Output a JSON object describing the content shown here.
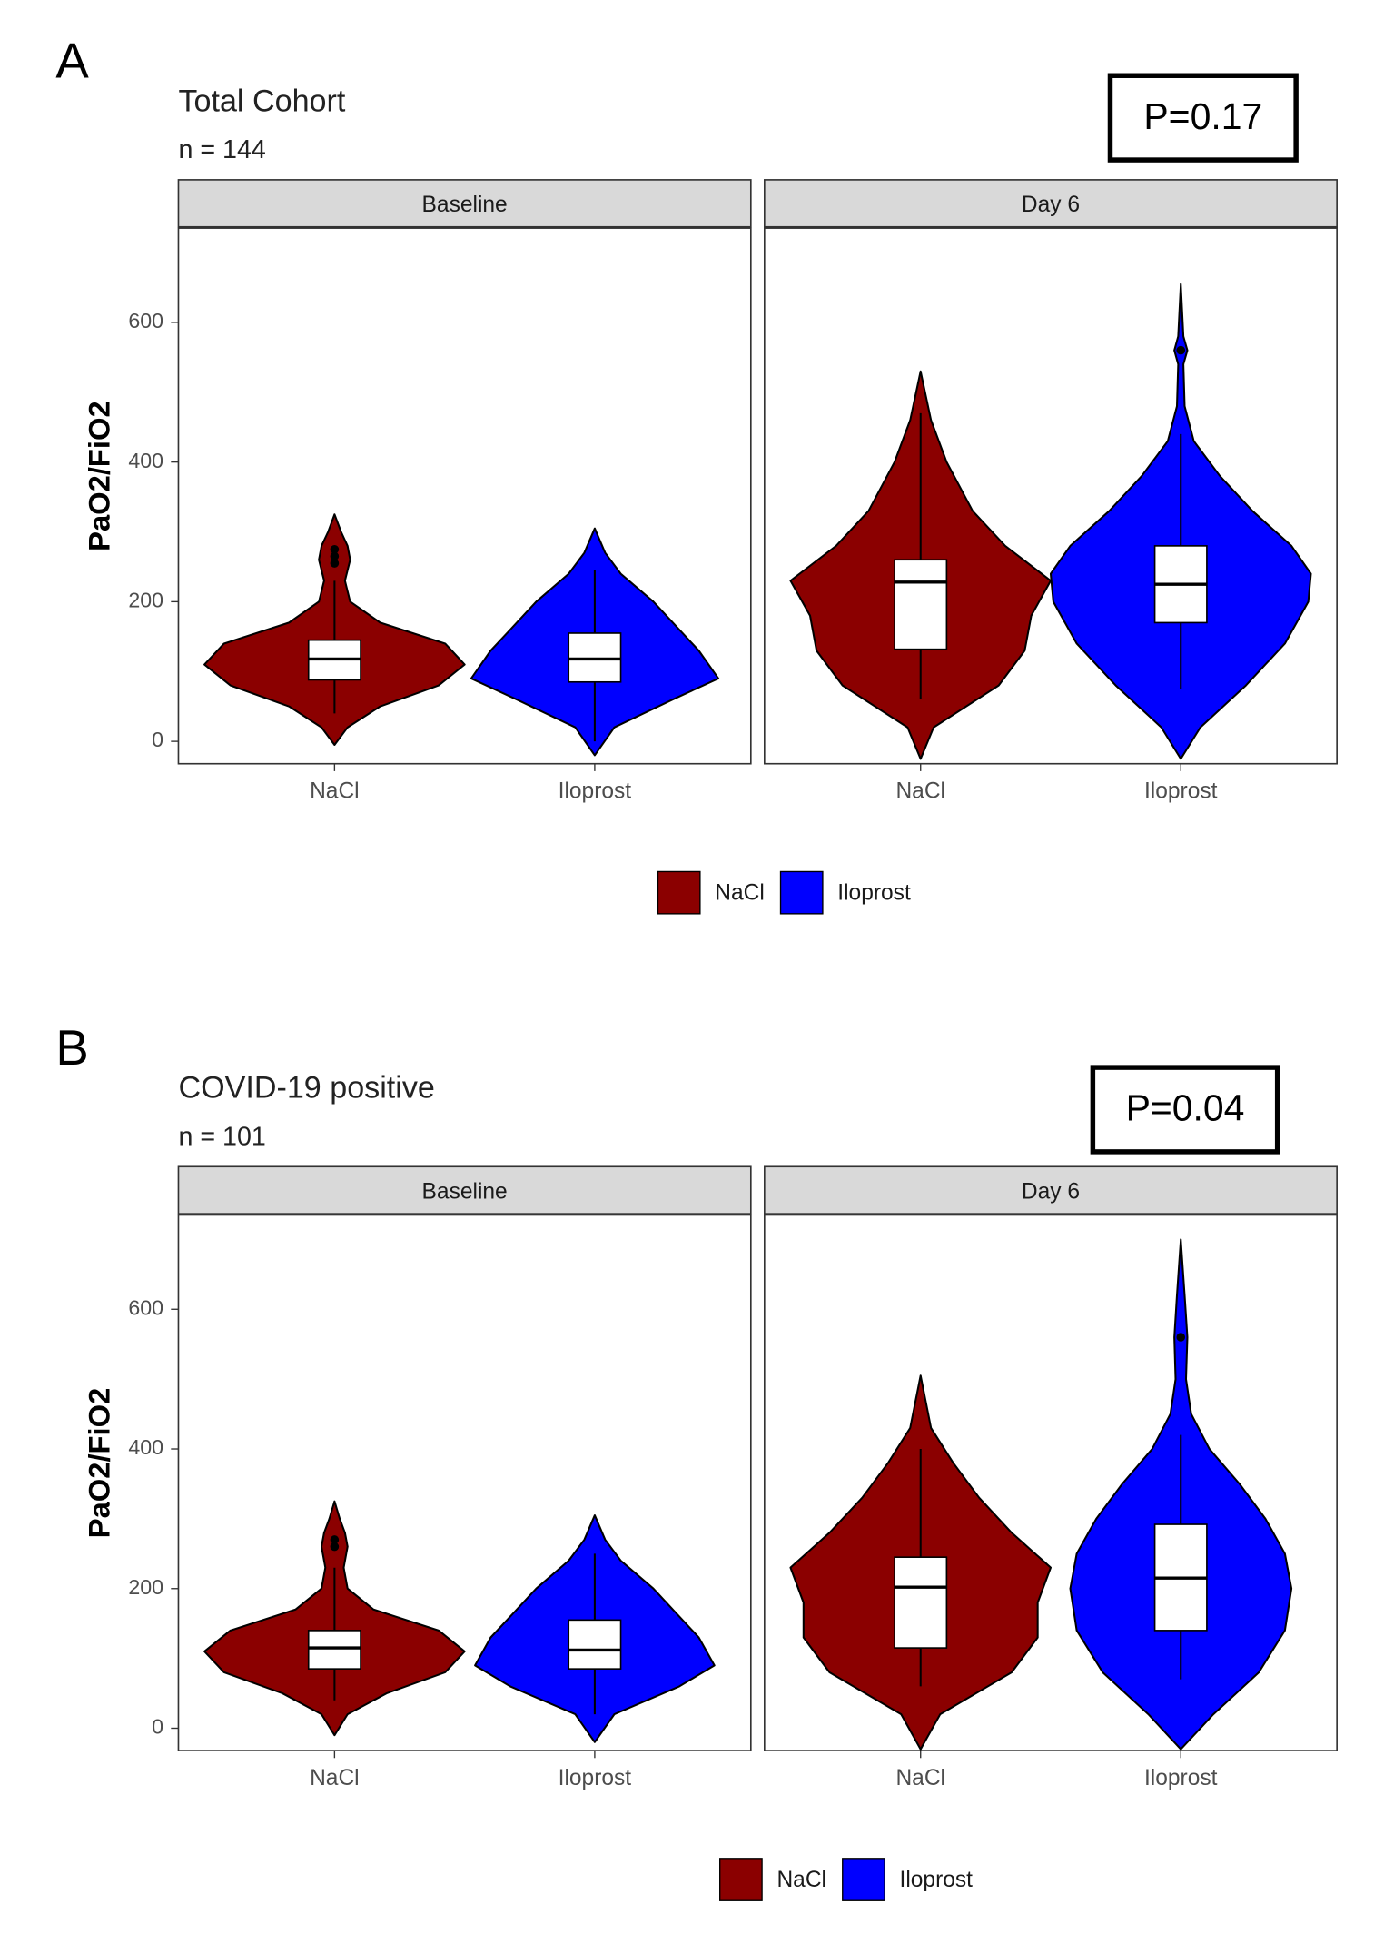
{
  "chart_data": [
    {
      "type": "violin",
      "panel_label": "A",
      "title": "Total Cohort",
      "subtitle": "n = 144",
      "annotation": "P=0.17",
      "ylabel": "PaO2/FiO2",
      "facets": [
        "Baseline",
        "Day 6"
      ],
      "categories": [
        "NaCl",
        "Iloprost"
      ],
      "ylim": [
        -32,
        735
      ],
      "yticks": [
        0,
        200,
        400,
        600
      ],
      "series": [
        {
          "name": "NaCl",
          "color": "#8b0000",
          "violins": [
            {
              "y": [
                -5,
                20,
                50,
                80,
                110,
                140,
                170,
                200,
                230,
                260,
                280,
                300,
                325
              ],
              "width": [
                0,
                0.1,
                0.35,
                0.8,
                1.0,
                0.85,
                0.35,
                0.12,
                0.08,
                0.12,
                0.1,
                0.05,
                0
              ],
              "box": {
                "low": 40,
                "q1": 88,
                "median": 118,
                "q3": 145,
                "high": 230
              },
              "outliers": [
                255,
                265,
                275
              ]
            },
            {
              "y": [
                -25,
                20,
                80,
                130,
                180,
                230,
                280,
                330,
                400,
                460,
                530
              ],
              "width": [
                0,
                0.1,
                0.6,
                0.8,
                0.85,
                1.0,
                0.65,
                0.4,
                0.2,
                0.08,
                0
              ],
              "box": {
                "low": 60,
                "q1": 132,
                "median": 228,
                "q3": 260,
                "high": 470
              },
              "outliers": []
            }
          ]
        },
        {
          "name": "Iloprost",
          "color": "#0000ff",
          "violins": [
            {
              "y": [
                -20,
                20,
                60,
                90,
                130,
                160,
                200,
                240,
                270,
                305
              ],
              "width": [
                0,
                0.15,
                0.6,
                0.95,
                0.8,
                0.65,
                0.45,
                0.2,
                0.08,
                0
              ],
              "box": {
                "low": 0,
                "q1": 85,
                "median": 118,
                "q3": 155,
                "high": 245
              },
              "outliers": []
            },
            {
              "y": [
                -25,
                20,
                80,
                140,
                200,
                240,
                280,
                330,
                380,
                430,
                480,
                540,
                560,
                580,
                655
              ],
              "width": [
                0,
                0.15,
                0.5,
                0.8,
                0.98,
                1.0,
                0.85,
                0.55,
                0.3,
                0.1,
                0.03,
                0.02,
                0.05,
                0.02,
                0
              ],
              "box": {
                "low": 75,
                "q1": 170,
                "median": 225,
                "q3": 280,
                "high": 440
              },
              "outliers": [
                560
              ]
            }
          ]
        }
      ]
    },
    {
      "type": "violin",
      "panel_label": "B",
      "title": "COVID-19 positive",
      "subtitle": "n = 101",
      "annotation": "P=0.04",
      "ylabel": "PaO2/FiO2",
      "facets": [
        "Baseline",
        "Day 6"
      ],
      "categories": [
        "NaCl",
        "Iloprost"
      ],
      "ylim": [
        -32,
        735
      ],
      "yticks": [
        0,
        200,
        400,
        600
      ],
      "series": [
        {
          "name": "NaCl",
          "color": "#8b0000",
          "violins": [
            {
              "y": [
                -10,
                20,
                50,
                80,
                110,
                140,
                170,
                200,
                230,
                260,
                280,
                300,
                325
              ],
              "width": [
                0,
                0.1,
                0.4,
                0.85,
                1.0,
                0.8,
                0.3,
                0.1,
                0.07,
                0.1,
                0.08,
                0.04,
                0
              ],
              "box": {
                "low": 40,
                "q1": 85,
                "median": 115,
                "q3": 140,
                "high": 230
              },
              "outliers": [
                260,
                270
              ]
            },
            {
              "y": [
                -30,
                20,
                80,
                130,
                180,
                230,
                280,
                330,
                380,
                430,
                505
              ],
              "width": [
                0,
                0.15,
                0.7,
                0.9,
                0.9,
                1.0,
                0.7,
                0.45,
                0.25,
                0.08,
                0
              ],
              "box": {
                "low": 60,
                "q1": 115,
                "median": 202,
                "q3": 245,
                "high": 400
              },
              "outliers": []
            }
          ]
        },
        {
          "name": "Iloprost",
          "color": "#0000ff",
          "violins": [
            {
              "y": [
                -20,
                20,
                60,
                90,
                130,
                160,
                200,
                240,
                270,
                305
              ],
              "width": [
                0,
                0.15,
                0.65,
                0.92,
                0.8,
                0.65,
                0.45,
                0.2,
                0.08,
                0
              ],
              "box": {
                "low": 20,
                "q1": 85,
                "median": 112,
                "q3": 155,
                "high": 250
              },
              "outliers": []
            },
            {
              "y": [
                -30,
                20,
                80,
                140,
                200,
                250,
                300,
                350,
                400,
                450,
                500,
                560,
                620,
                700
              ],
              "width": [
                0,
                0.25,
                0.6,
                0.8,
                0.85,
                0.8,
                0.65,
                0.45,
                0.22,
                0.08,
                0.04,
                0.05,
                0.03,
                0
              ],
              "box": {
                "low": 70,
                "q1": 140,
                "median": 215,
                "q3": 292,
                "high": 420
              },
              "outliers": [
                560
              ]
            }
          ]
        }
      ]
    }
  ]
}
